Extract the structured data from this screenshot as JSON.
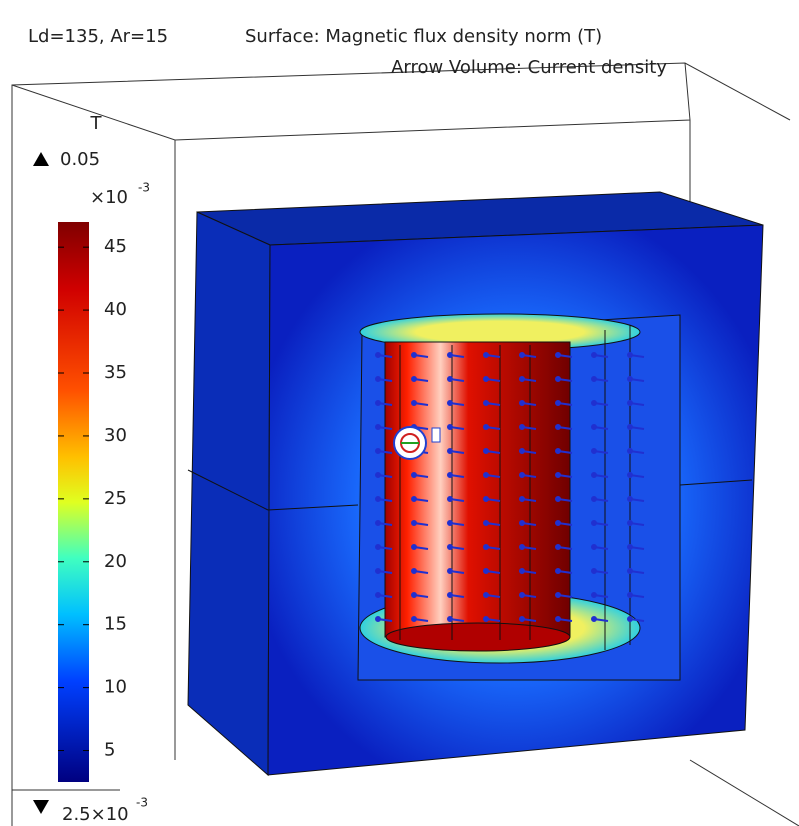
{
  "plot": {
    "title_left": "Ld=135, Ar=15",
    "title_right": "Surface: Magnetic flux density norm (T)",
    "subtitle": "Arrow Volume: Current density"
  },
  "legend": {
    "unit": "T",
    "max_label": "0.05",
    "scale_label": "×10",
    "scale_exponent": "-3",
    "ticks": [
      45,
      40,
      35,
      30,
      25,
      20,
      15,
      10,
      5
    ],
    "range": [
      2.5,
      47
    ],
    "min_label": "2.5×10",
    "min_exponent": "-3"
  }
}
